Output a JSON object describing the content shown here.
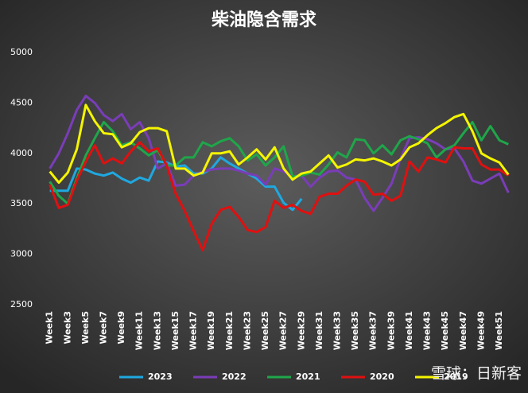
{
  "chart_data": {
    "type": "line",
    "title": "柴油隐含需求",
    "categories": [
      "Week1",
      null,
      "Week3",
      null,
      "Week5",
      null,
      "Week7",
      null,
      "Week9",
      null,
      "Week11",
      null,
      "Week13",
      null,
      "Week15",
      null,
      "Week17",
      null,
      "Week19",
      null,
      "Week21",
      null,
      "Week23",
      null,
      "Week25",
      null,
      "Week27",
      null,
      "Week29",
      null,
      "Week31",
      null,
      "Week33",
      null,
      "Week35",
      null,
      "Week37",
      null,
      "Week39",
      null,
      "Week41",
      null,
      "Week43",
      null,
      "Week45",
      null,
      "Week47",
      null,
      "Week49",
      null,
      "Week51",
      null
    ],
    "series": [
      {
        "name": "2023",
        "color": "#1fa8e0",
        "values": [
          3630,
          3630,
          3630,
          3850,
          3840,
          3800,
          3780,
          3810,
          3750,
          3710,
          3760,
          3730,
          3920,
          3910,
          3870,
          3880,
          3800,
          3800,
          3850,
          3960,
          3900,
          3850,
          3800,
          3750,
          3670,
          3670,
          3510,
          3440,
          3550,
          null,
          null,
          null,
          null,
          null,
          null,
          null,
          null,
          null,
          null,
          null,
          null,
          null,
          null,
          null,
          null,
          null,
          null,
          null,
          null,
          null,
          null,
          null
        ]
      },
      {
        "name": "2022",
        "color": "#7a3db8",
        "values": [
          3850,
          4000,
          4200,
          4430,
          4570,
          4500,
          4380,
          4320,
          4390,
          4240,
          4310,
          4150,
          3850,
          3900,
          3680,
          3690,
          3780,
          3820,
          3840,
          3850,
          3850,
          3830,
          3800,
          3780,
          3690,
          3850,
          3820,
          3770,
          3780,
          3670,
          3760,
          3820,
          3830,
          3760,
          3740,
          3560,
          3430,
          3560,
          3700,
          3950,
          4150,
          4160,
          4140,
          4100,
          4040,
          4050,
          3920,
          3730,
          3700,
          3750,
          3800,
          3610
        ]
      },
      {
        "name": "2021",
        "color": "#1fa64a",
        "values": [
          3720,
          3580,
          3500,
          3750,
          3980,
          4150,
          4310,
          4220,
          4080,
          4110,
          4050,
          3980,
          4030,
          3880,
          3880,
          3960,
          3960,
          4110,
          4070,
          4120,
          4150,
          4070,
          3930,
          3990,
          3880,
          3960,
          4070,
          3770,
          3780,
          3810,
          3790,
          3890,
          4010,
          3960,
          4140,
          4130,
          4000,
          4080,
          3990,
          4130,
          4170,
          4140,
          4100,
          3960,
          4040,
          4080,
          4200,
          4310,
          4130,
          4270,
          4130,
          4090
        ]
      },
      {
        "name": "2020",
        "color": "#e01010",
        "values": [
          3690,
          3460,
          3490,
          3730,
          3920,
          4080,
          3900,
          3950,
          3900,
          4020,
          4110,
          4020,
          4050,
          3880,
          3600,
          3430,
          3230,
          3040,
          3300,
          3440,
          3470,
          3370,
          3240,
          3220,
          3270,
          3530,
          3460,
          3490,
          3430,
          3400,
          3570,
          3600,
          3600,
          3680,
          3740,
          3720,
          3590,
          3600,
          3530,
          3580,
          3920,
          3820,
          3960,
          3940,
          3910,
          4060,
          4050,
          4050,
          3890,
          3840,
          3840,
          3780
        ]
      },
      {
        "name": "2019",
        "color": "#f5f500",
        "values": [
          3820,
          3710,
          3810,
          4040,
          4480,
          4320,
          4200,
          4190,
          4060,
          4100,
          4210,
          4250,
          4250,
          4220,
          3850,
          3850,
          3780,
          3810,
          4000,
          4000,
          4020,
          3890,
          3960,
          4040,
          3940,
          4060,
          3850,
          3740,
          3800,
          3820,
          3900,
          3980,
          3860,
          3890,
          3940,
          3930,
          3950,
          3920,
          3880,
          3940,
          4060,
          4100,
          4180,
          4250,
          4300,
          4360,
          4390,
          4220,
          4000,
          3950,
          3910,
          3790
        ]
      }
    ],
    "ylim": [
      2500,
      5000
    ],
    "yticks": [
      2500,
      3000,
      3500,
      4000,
      4500,
      5000
    ],
    "grid": false,
    "legend": "bottom",
    "watermark": "雪球：日新客"
  }
}
